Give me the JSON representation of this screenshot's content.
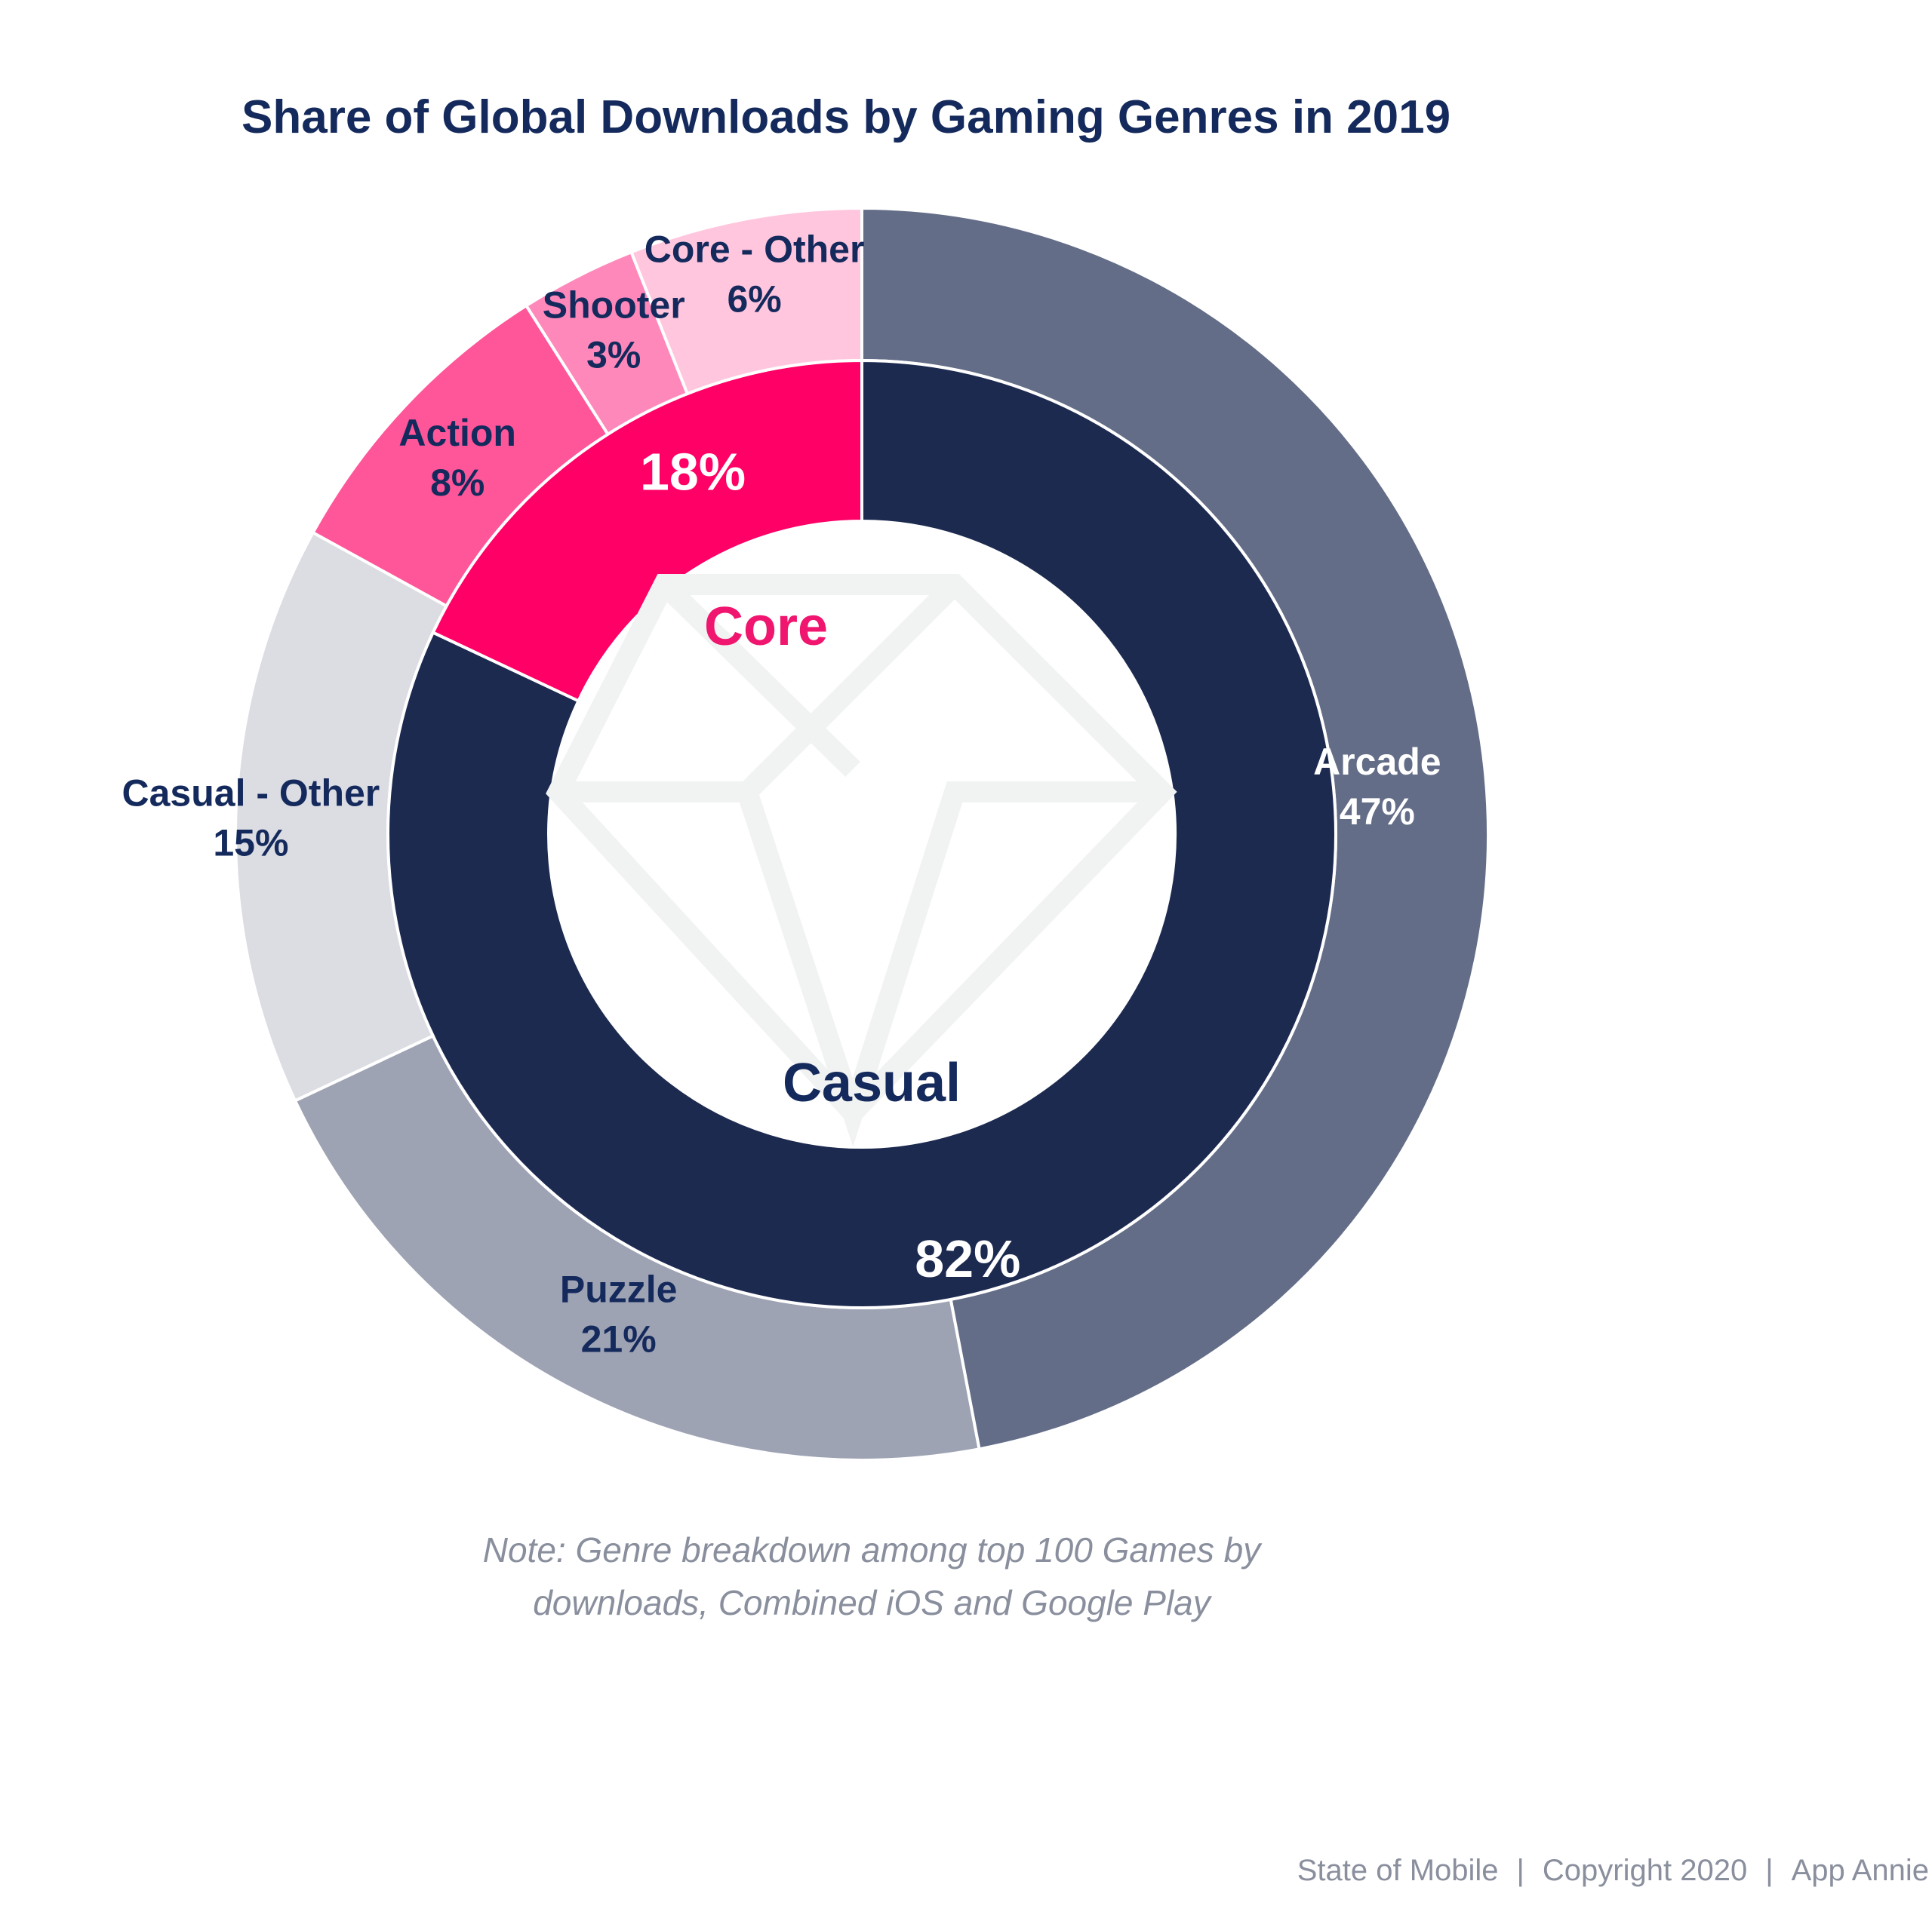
{
  "title": "Share of Global Downloads by Gaming Genres in 2019",
  "note": {
    "line1": "Note: Genre breakdown among top 100 Games by",
    "line2": "downloads, Combined iOS and Google Play"
  },
  "footer": {
    "left": "State of Mobile",
    "separator": "|",
    "middle": "Copyright 2020",
    "right": "App Annie"
  },
  "watermark_icon": "diamond-icon",
  "chart_data": {
    "type": "pie",
    "title": "Share of Global Downloads by Gaming Genres in 2019",
    "unit": "%",
    "inner_ring": [
      {
        "name": "Casual",
        "value": 82,
        "label": "82%",
        "color": "#1d2a50"
      },
      {
        "name": "Core",
        "value": 18,
        "label": "18%",
        "color": "#ff0066"
      }
    ],
    "outer_ring": [
      {
        "name": "Arcade",
        "value": 47,
        "label": "47%",
        "group": "Casual",
        "color": "#636d87"
      },
      {
        "name": "Puzzle",
        "value": 21,
        "label": "21%",
        "group": "Casual",
        "color": "#9ea3b4"
      },
      {
        "name": "Casual - Other",
        "value": 15,
        "label": "15%",
        "group": "Casual",
        "color": "#dcdde3"
      },
      {
        "name": "Action",
        "value": 8,
        "label": "8%",
        "group": "Core",
        "color": "#ff5599"
      },
      {
        "name": "Shooter",
        "value": 3,
        "label": "3%",
        "group": "Core",
        "color": "#ff88bb"
      },
      {
        "name": "Core - Other",
        "value": 6,
        "label": "6%",
        "group": "Core",
        "color": "#ffc6de"
      }
    ],
    "center_labels": {
      "core": "Core",
      "casual": "Casual"
    },
    "colors": {
      "core_text": "#f0156e",
      "casual_text": "#152a5c",
      "dark_label": "#152a5c",
      "light_label": "#ffffff"
    }
  }
}
